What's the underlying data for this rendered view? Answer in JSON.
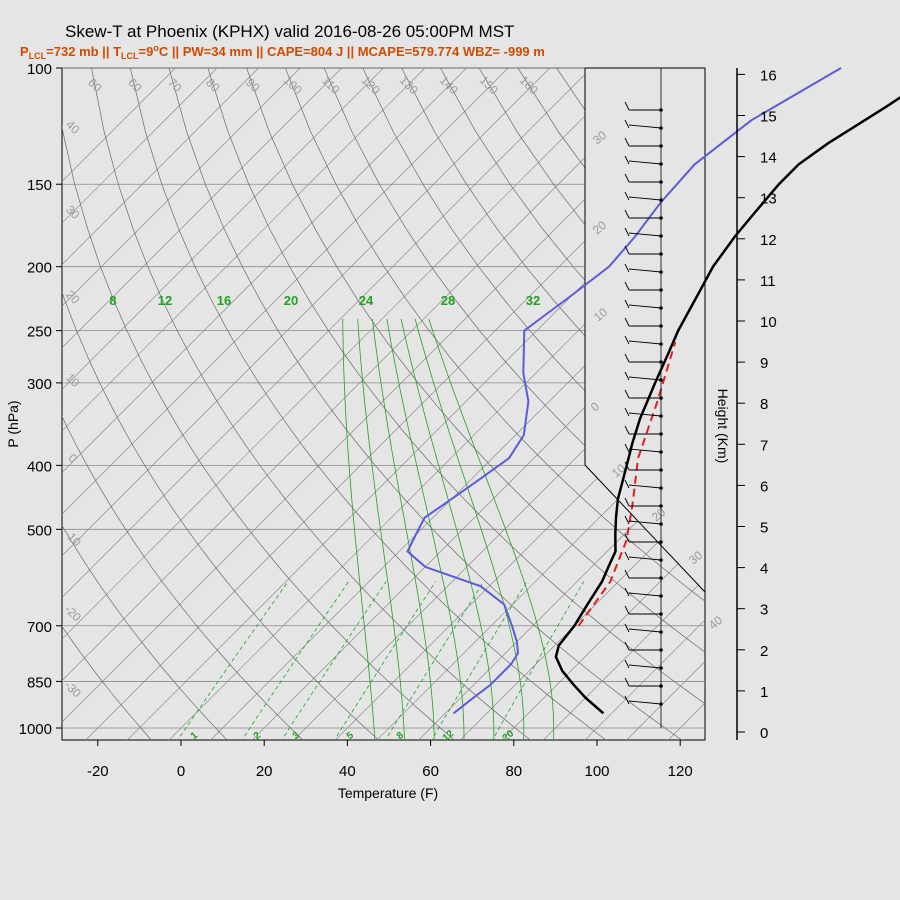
{
  "title": "Skew-T at Phoenix (KPHX) valid 2016-08-26 05:00PM MST",
  "subtitle": {
    "plcl_prefix": "P",
    "plcl_sub": "LCL",
    "plcl_value": "=732 mb || T",
    "tlcl_sub": "LCL",
    "tlcl_value": "=9",
    "deg": "o",
    "rest": "C || PW=34 mm || CAPE=804 J || MCAPE=579.774 WBZ= -999 m"
  },
  "axes": {
    "xlabel": "Temperature (F)",
    "ylabel": "P (hPa)",
    "y2label": "Height (Km)",
    "x_ticks": [
      "-20",
      "0",
      "20",
      "40",
      "60",
      "80",
      "100",
      "120"
    ],
    "p_ticks": [
      "100",
      "150",
      "200",
      "250",
      "300",
      "400",
      "500",
      "700",
      "850",
      "1000"
    ],
    "height_ticks": [
      "0",
      "1",
      "2",
      "3",
      "4",
      "5",
      "6",
      "7",
      "8",
      "9",
      "10",
      "11",
      "12",
      "13",
      "14",
      "15",
      "16"
    ]
  },
  "isotherm_labels": [
    "-30",
    "-20",
    "-10",
    "0",
    "10",
    "20",
    "30",
    "40"
  ],
  "dry_adiabat_labels": [
    "60",
    "60",
    "70",
    "80",
    "90",
    "100",
    "110",
    "120",
    "130",
    "140",
    "150",
    "160",
    "40",
    "30",
    "20",
    "10",
    "0",
    "-10",
    "-20",
    "-30"
  ],
  "moist_adiabat_labels": [
    "8",
    "12",
    "16",
    "20",
    "24",
    "28",
    "32"
  ],
  "mixing_ratio_labels": [
    "1",
    "2",
    "3",
    "5",
    "8",
    "12",
    "20"
  ],
  "chart_data": {
    "type": "line",
    "x_unit": "F",
    "y_unit": "hPa",
    "y_scale": "log",
    "xlim": [
      -28,
      125
    ],
    "ylim": [
      1050,
      100
    ],
    "series": [
      {
        "kind": "temperature",
        "color": "#000000",
        "points": [
          [
            98,
            950
          ],
          [
            90,
            900
          ],
          [
            84,
            860
          ],
          [
            78,
            820
          ],
          [
            73,
            780
          ],
          [
            71,
            750
          ],
          [
            70,
            700
          ],
          [
            68,
            650
          ],
          [
            66,
            600
          ],
          [
            64,
            570
          ],
          [
            62,
            540
          ],
          [
            58,
            510
          ],
          [
            54,
            480
          ],
          [
            50,
            450
          ],
          [
            44,
            400
          ],
          [
            40,
            370
          ],
          [
            36,
            340
          ],
          [
            31,
            300
          ],
          [
            27,
            270
          ],
          [
            24,
            250
          ],
          [
            20,
            220
          ],
          [
            17,
            200
          ],
          [
            15,
            180
          ],
          [
            14,
            165
          ],
          [
            13,
            150
          ],
          [
            13,
            140
          ],
          [
            15,
            130
          ],
          [
            20,
            115
          ],
          [
            25,
            100
          ]
        ]
      },
      {
        "kind": "dewpoint",
        "color": "#5b5bdc",
        "points": [
          [
            62,
            950
          ],
          [
            63,
            900
          ],
          [
            64,
            860
          ],
          [
            64,
            800
          ],
          [
            63,
            770
          ],
          [
            60,
            740
          ],
          [
            55,
            700
          ],
          [
            48,
            650
          ],
          [
            38,
            610
          ],
          [
            20,
            570
          ],
          [
            12,
            540
          ],
          [
            10,
            510
          ],
          [
            8,
            480
          ],
          [
            10,
            450
          ],
          [
            12,
            420
          ],
          [
            14,
            390
          ],
          [
            12,
            360
          ],
          [
            5,
            320
          ],
          [
            -3,
            290
          ],
          [
            -13,
            250
          ],
          [
            -10,
            220
          ],
          [
            -8,
            200
          ],
          [
            -9,
            180
          ],
          [
            -11,
            160
          ],
          [
            -12,
            140
          ],
          [
            -9,
            120
          ],
          [
            0,
            100
          ]
        ]
      },
      {
        "kind": "parcel",
        "color": "#e02020",
        "points": [
          [
            71,
            700
          ],
          [
            68,
            600
          ],
          [
            62,
            520
          ],
          [
            55,
            460
          ],
          [
            45,
            390
          ],
          [
            36,
            320
          ],
          [
            26,
            260
          ]
        ]
      }
    ]
  },
  "colors": {
    "background": "#e5e5e5",
    "isotherm": "#808080",
    "grid": "#8a8a8a",
    "moist_adiabat": "#22a022",
    "mixing_ratio": "#22a022",
    "temperature": "#000000",
    "dewpoint": "#5b5bdc",
    "parcel": "#e02020",
    "subtitle": "#d24a00"
  }
}
